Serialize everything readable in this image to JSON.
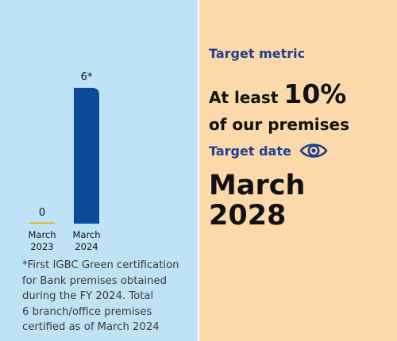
{
  "chart_data": {
    "type": "bar",
    "categories": [
      "March\n2023",
      "March\n2024"
    ],
    "values": [
      0,
      6
    ],
    "value_labels": [
      "0",
      "6*"
    ],
    "ylim": [
      0,
      6.8
    ],
    "bar_color": "#0a4a9a",
    "zero_marker_color": "#e6b400",
    "grid": false,
    "title": "",
    "xlabel": "",
    "ylabel": ""
  },
  "footnote": "*First IGBC Green certification\nfor Bank premises obtained\nduring the FY 2024. Total\n6 branch/office premises\ncertified as of March 2024",
  "target_metric": {
    "heading": "Target metric",
    "prefix": "At least ",
    "value": "10%",
    "suffix": "of our premises"
  },
  "target_date": {
    "heading": "Target date",
    "icon": "eye-icon",
    "value": "March\n2028"
  },
  "colors": {
    "left_bg": "#bfe3f6",
    "right_bg": "#fbd9aa",
    "heading": "#1f3f8f"
  }
}
